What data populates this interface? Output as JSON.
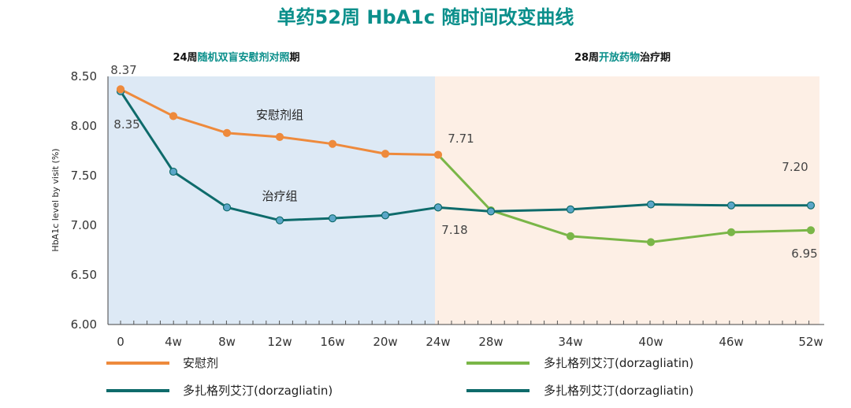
{
  "chart_data": {
    "type": "line",
    "title": "单药52周 HbA1c 随时间改变曲线",
    "ylabel": "HbA1c level by visit (%)",
    "xlabel": "",
    "ylim": [
      6.0,
      8.5
    ],
    "yticks": [
      "8.50",
      "8.00",
      "7.50",
      "7.00",
      "6.50",
      "6.00"
    ],
    "categories": [
      "0",
      "4w",
      "8w",
      "12w",
      "16w",
      "20w",
      "24w",
      "28w",
      "34w",
      "40w",
      "46w",
      "52w"
    ],
    "phases": [
      {
        "pre": "24周",
        "highlight": "随机双盲安慰剂对照",
        "post": "期",
        "color": "#dde9f5"
      },
      {
        "pre": "28周",
        "highlight": "开放药物",
        "post": "治疗期",
        "color": "#fdefe5"
      }
    ],
    "series": [
      {
        "name": "安慰剂",
        "color": "#ee8a3c",
        "x": [
          "0",
          "4w",
          "8w",
          "12w",
          "16w",
          "20w",
          "24w"
        ],
        "values": [
          8.37,
          8.1,
          7.93,
          7.89,
          7.82,
          7.72,
          7.71
        ]
      },
      {
        "name": "多扎格列艾汀(dorzagliatin)",
        "color": "#7ab648",
        "x": [
          "24w",
          "28w",
          "34w",
          "40w",
          "46w",
          "52w"
        ],
        "values": [
          7.71,
          7.15,
          6.89,
          6.83,
          6.93,
          6.95
        ]
      },
      {
        "name": "多扎格列艾汀(dorzagliatin)",
        "color": "#0e6b6b",
        "x": [
          "0",
          "4w",
          "8w",
          "12w",
          "16w",
          "20w",
          "24w"
        ],
        "values": [
          8.35,
          7.54,
          7.18,
          7.05,
          7.07,
          7.1,
          7.18
        ]
      },
      {
        "name": "多扎格列艾汀(dorzagliatin)",
        "color": "#0e6b6b",
        "x": [
          "24w",
          "28w",
          "34w",
          "40w",
          "46w",
          "52w"
        ],
        "values": [
          7.18,
          7.14,
          7.16,
          7.21,
          7.2,
          7.2
        ]
      }
    ],
    "group_labels": [
      "安慰剂组",
      "治疗组"
    ],
    "data_labels": [
      "8.37",
      "8.35",
      "7.71",
      "7.18",
      "7.20",
      "6.95"
    ],
    "grid": false,
    "legend": "bottom"
  }
}
